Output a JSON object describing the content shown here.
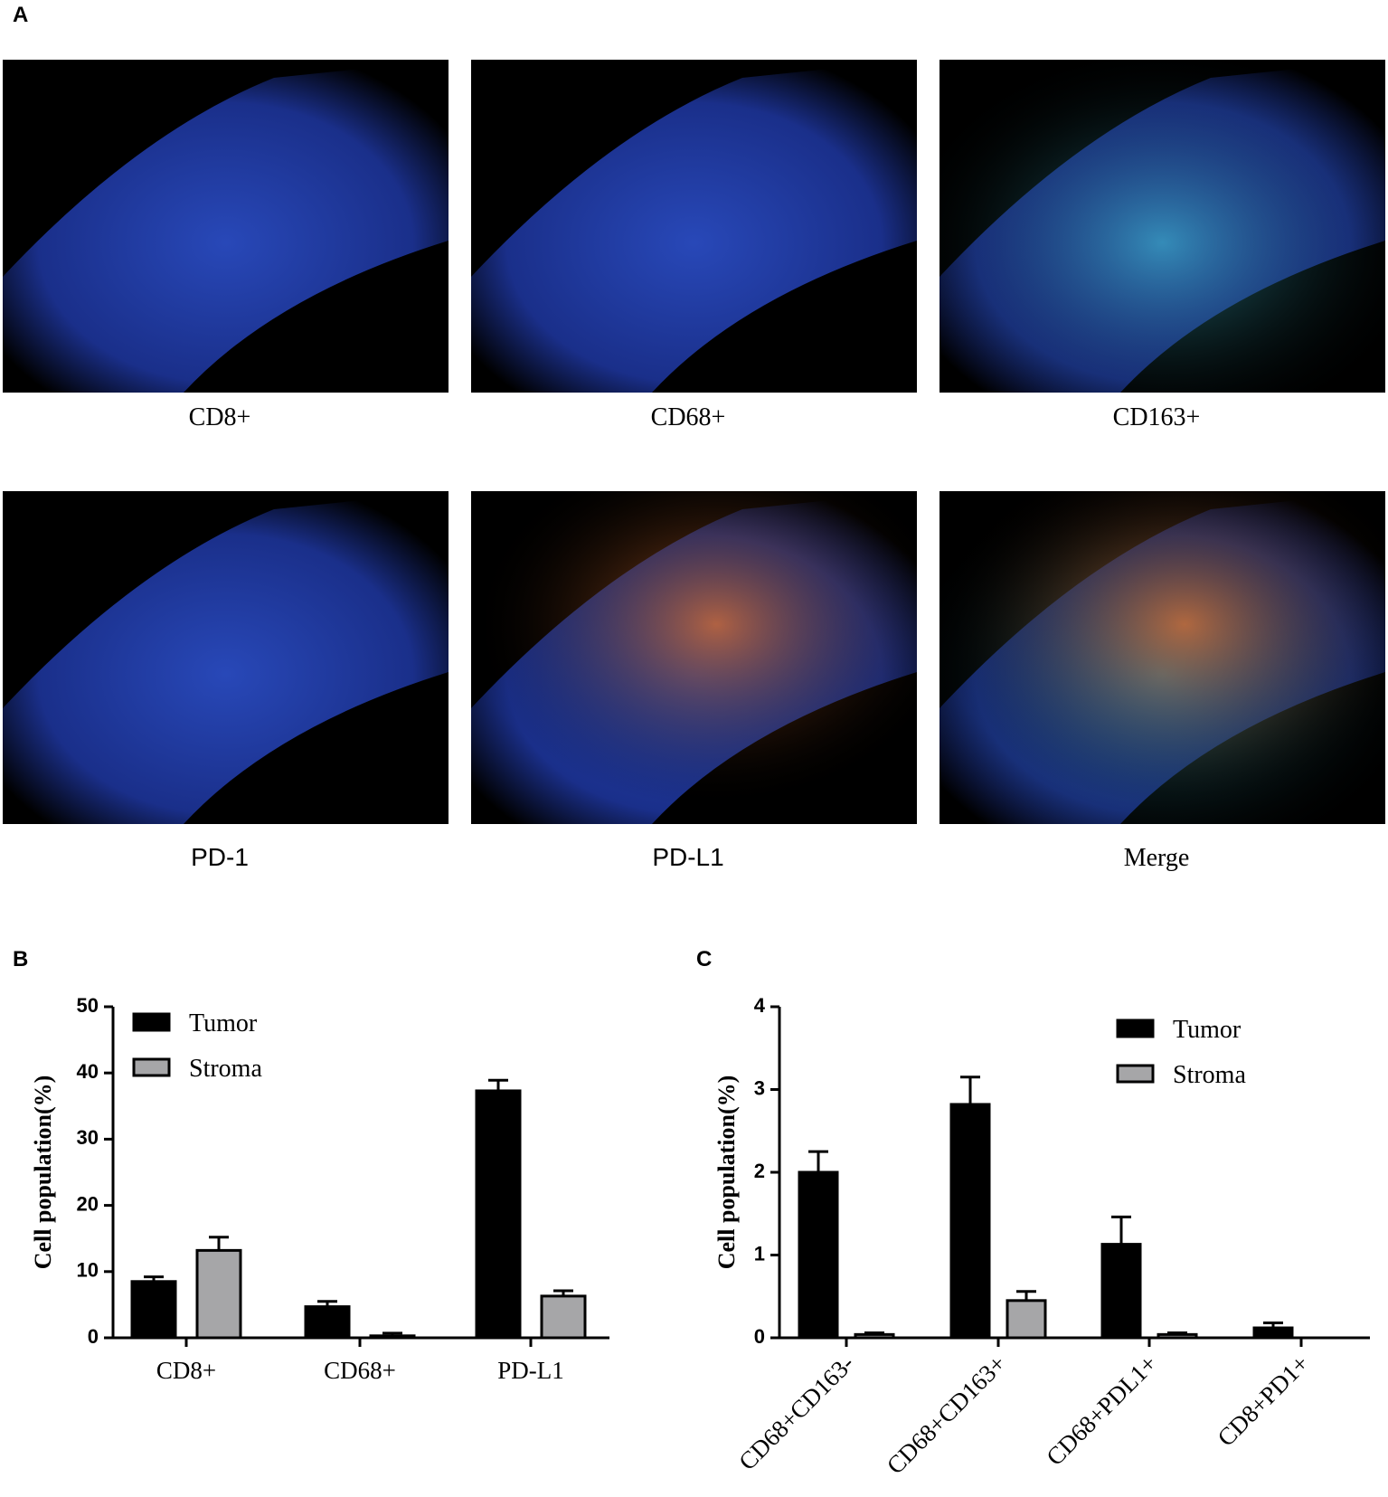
{
  "panels": {
    "a": "A",
    "b": "B",
    "c": "C"
  },
  "images": {
    "labels": [
      "CD8+",
      "CD68+",
      "CD163+",
      "PD-1",
      "PD-L1",
      "Merge"
    ]
  },
  "chart_data": [
    {
      "type": "bar",
      "ylabel": "Cell population(%)",
      "categories": [
        "CD8+",
        "CD68+",
        "PD-L1"
      ],
      "series": [
        {
          "name": "Tumor",
          "color": "#000000",
          "values": [
            8.5,
            4.7,
            37.3
          ],
          "errors": [
            0.7,
            0.8,
            1.6
          ]
        },
        {
          "name": "Stroma",
          "color": "#a6a6a8",
          "values": [
            13.2,
            0.3,
            6.3
          ],
          "errors": [
            2.0,
            0.4,
            0.8
          ]
        }
      ],
      "ylim": [
        0,
        50
      ],
      "yticks": [
        0,
        10,
        20,
        30,
        40,
        50
      ],
      "legend": "top-left"
    },
    {
      "type": "bar",
      "ylabel": "Cell population(%)",
      "categories": [
        "CD68+CD163-",
        "CD68+CD163+",
        "CD68+PDL1+",
        "CD8+PD1+"
      ],
      "series": [
        {
          "name": "Tumor",
          "color": "#000000",
          "values": [
            2.0,
            2.82,
            1.13,
            0.12
          ],
          "errors": [
            0.25,
            0.33,
            0.33,
            0.06
          ]
        },
        {
          "name": "Stroma",
          "color": "#a6a6a8",
          "values": [
            0.04,
            0.45,
            0.04,
            0
          ],
          "errors": [
            0.02,
            0.11,
            0.02,
            0
          ]
        }
      ],
      "ylim": [
        0,
        4
      ],
      "yticks": [
        0,
        1,
        2,
        3,
        4
      ],
      "legend": "top-right",
      "rotate_labels": true
    }
  ]
}
